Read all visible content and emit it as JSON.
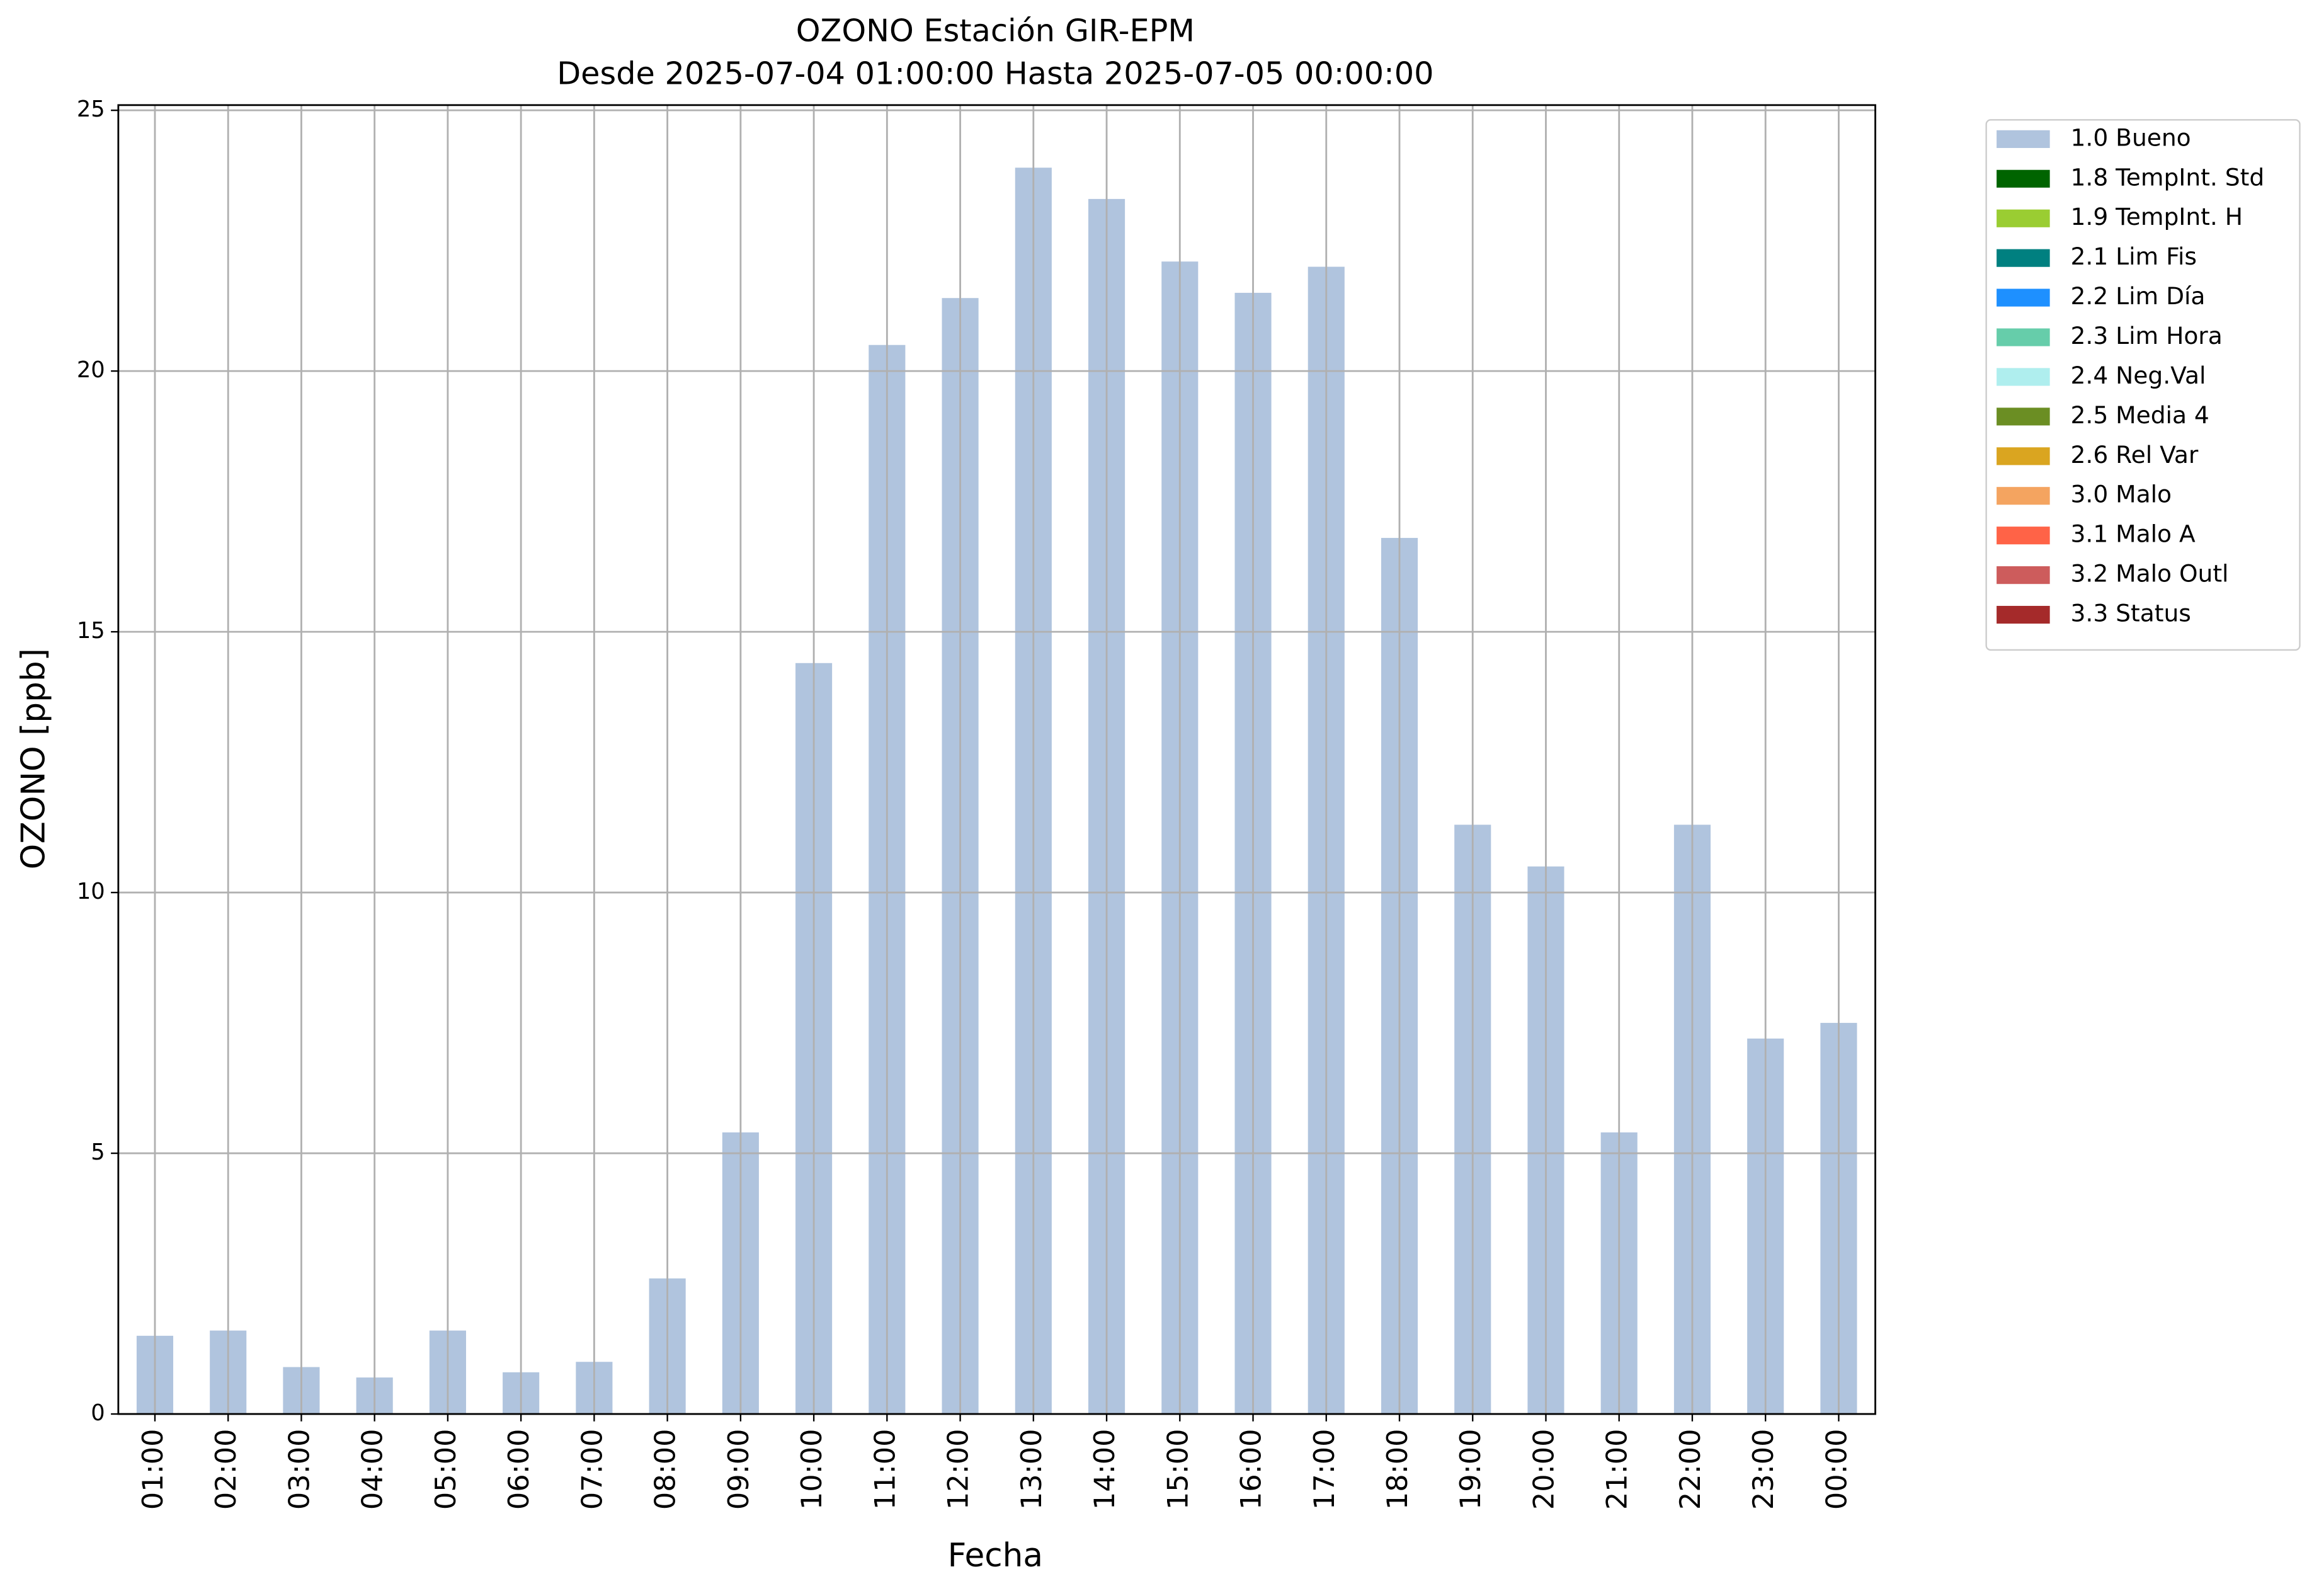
{
  "chart_data": {
    "type": "bar",
    "stacked": true,
    "title": "OZONO Estación GIR-EPM",
    "subtitle": "Desde 2025-07-04 01:00:00 Hasta 2025-07-05 00:00:00",
    "x_label": "Fecha",
    "y_label": "OZONO [ppb]",
    "categories": [
      "01:00",
      "02:00",
      "03:00",
      "04:00",
      "05:00",
      "06:00",
      "07:00",
      "08:00",
      "09:00",
      "10:00",
      "11:00",
      "12:00",
      "13:00",
      "14:00",
      "15:00",
      "16:00",
      "17:00",
      "18:00",
      "19:00",
      "20:00",
      "21:00",
      "22:00",
      "23:00",
      "00:00"
    ],
    "series": [
      {
        "name": "1.0 Bueno",
        "color": "#b0c4de",
        "values": [
          1.5,
          1.6,
          0.9,
          0.7,
          1.6,
          0.8,
          1.0,
          2.6,
          5.4,
          14.4,
          20.5,
          21.4,
          23.9,
          23.3,
          22.1,
          21.5,
          22.0,
          16.8,
          11.3,
          10.5,
          5.4,
          11.3,
          7.2,
          7.5
        ]
      },
      {
        "name": "1.8 TempInt. Std",
        "color": "#006400",
        "values": [
          0,
          0,
          0,
          0,
          0,
          0,
          0,
          0,
          0,
          0,
          0,
          0,
          0,
          0,
          0,
          0,
          0,
          0,
          0,
          0,
          0,
          0,
          0,
          0
        ]
      },
      {
        "name": "1.9 TempInt. H",
        "color": "#9acd32",
        "values": [
          0,
          0,
          0,
          0,
          0,
          0,
          0,
          0,
          0,
          0,
          0,
          0,
          0,
          0,
          0,
          0,
          0,
          0,
          0,
          0,
          0,
          0,
          0,
          0
        ]
      },
      {
        "name": "2.1 Lim Fis",
        "color": "#008080",
        "values": [
          0,
          0,
          0,
          0,
          0,
          0,
          0,
          0,
          0,
          0,
          0,
          0,
          0,
          0,
          0,
          0,
          0,
          0,
          0,
          0,
          0,
          0,
          0,
          0
        ]
      },
      {
        "name": "2.2 Lim Día",
        "color": "#1e90ff",
        "values": [
          0,
          0,
          0,
          0,
          0,
          0,
          0,
          0,
          0,
          0,
          0,
          0,
          0,
          0,
          0,
          0,
          0,
          0,
          0,
          0,
          0,
          0,
          0,
          0
        ]
      },
      {
        "name": "2.3 Lim Hora",
        "color": "#66cdaa",
        "values": [
          0,
          0,
          0,
          0,
          0,
          0,
          0,
          0,
          0,
          0,
          0,
          0,
          0,
          0,
          0,
          0,
          0,
          0,
          0,
          0,
          0,
          0,
          0,
          0
        ]
      },
      {
        "name": "2.4 Neg.Val",
        "color": "#afeeee",
        "values": [
          0,
          0,
          0,
          0,
          0,
          0,
          0,
          0,
          0,
          0,
          0,
          0,
          0,
          0,
          0,
          0,
          0,
          0,
          0,
          0,
          0,
          0,
          0,
          0
        ]
      },
      {
        "name": "2.5 Media 4",
        "color": "#6b8e23",
        "values": [
          0,
          0,
          0,
          0,
          0,
          0,
          0,
          0,
          0,
          0,
          0,
          0,
          0,
          0,
          0,
          0,
          0,
          0,
          0,
          0,
          0,
          0,
          0,
          0
        ]
      },
      {
        "name": "2.6 Rel Var",
        "color": "#daa520",
        "values": [
          0,
          0,
          0,
          0,
          0,
          0,
          0,
          0,
          0,
          0,
          0,
          0,
          0,
          0,
          0,
          0,
          0,
          0,
          0,
          0,
          0,
          0,
          0,
          0
        ]
      },
      {
        "name": "3.0 Malo",
        "color": "#f4a460",
        "values": [
          0,
          0,
          0,
          0,
          0,
          0,
          0,
          0,
          0,
          0,
          0,
          0,
          0,
          0,
          0,
          0,
          0,
          0,
          0,
          0,
          0,
          0,
          0,
          0
        ]
      },
      {
        "name": "3.1 Malo A",
        "color": "#ff6347",
        "values": [
          0,
          0,
          0,
          0,
          0,
          0,
          0,
          0,
          0,
          0,
          0,
          0,
          0,
          0,
          0,
          0,
          0,
          0,
          0,
          0,
          0,
          0,
          0,
          0
        ]
      },
      {
        "name": "3.2 Malo Outl",
        "color": "#cd5c5c",
        "values": [
          0,
          0,
          0,
          0,
          0,
          0,
          0,
          0,
          0,
          0,
          0,
          0,
          0,
          0,
          0,
          0,
          0,
          0,
          0,
          0,
          0,
          0,
          0,
          0
        ]
      },
      {
        "name": "3.3 Status",
        "color": "#a52a2a",
        "values": [
          0,
          0,
          0,
          0,
          0,
          0,
          0,
          0,
          0,
          0,
          0,
          0,
          0,
          0,
          0,
          0,
          0,
          0,
          0,
          0,
          0,
          0,
          0,
          0
        ]
      }
    ],
    "ylim": [
      0,
      25.1
    ],
    "yticks": [
      0,
      5,
      10,
      15,
      20,
      25
    ],
    "grid": true,
    "legend": "outside-right"
  }
}
